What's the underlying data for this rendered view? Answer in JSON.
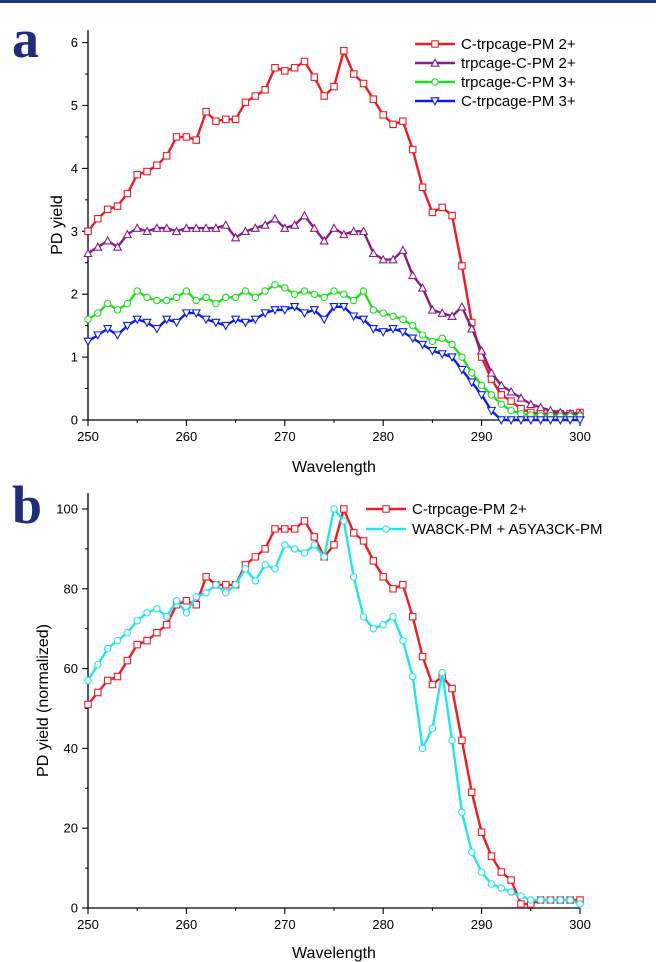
{
  "panels": [
    {
      "letter": "a"
    },
    {
      "letter": "b"
    }
  ],
  "chart_data": [
    {
      "type": "line",
      "xlabel": "Wavelength",
      "ylabel": "PD yield",
      "xlim": [
        250,
        300
      ],
      "ylim": [
        0,
        6.2
      ],
      "xticks": [
        250,
        260,
        270,
        280,
        290,
        300
      ],
      "yticks": [
        0,
        1,
        2,
        3,
        4,
        5,
        6
      ],
      "legend_position": "top-right",
      "series": [
        {
          "name": "C-trpcage-PM 2+",
          "color": "#ee1c24",
          "marker": "square",
          "x": [
            250,
            251,
            252,
            253,
            254,
            255,
            256,
            257,
            258,
            259,
            260,
            261,
            262,
            263,
            264,
            265,
            266,
            267,
            268,
            269,
            270,
            271,
            272,
            273,
            274,
            275,
            276,
            277,
            278,
            279,
            280,
            281,
            282,
            283,
            284,
            285,
            286,
            287,
            288,
            289,
            290,
            291,
            292,
            293,
            294,
            295,
            296,
            297,
            298,
            299,
            300
          ],
          "y": [
            3.0,
            3.2,
            3.35,
            3.4,
            3.6,
            3.9,
            3.95,
            4.05,
            4.2,
            4.5,
            4.5,
            4.45,
            4.9,
            4.75,
            4.78,
            4.78,
            5.05,
            5.15,
            5.25,
            5.6,
            5.55,
            5.6,
            5.7,
            5.45,
            5.15,
            5.3,
            5.87,
            5.5,
            5.35,
            5.1,
            4.85,
            4.7,
            4.75,
            4.3,
            3.7,
            3.3,
            3.38,
            3.25,
            2.45,
            1.55,
            1.0,
            0.65,
            0.4,
            0.3,
            0.18,
            0.12,
            0.1,
            0.1,
            0.1,
            0.1,
            0.12
          ]
        },
        {
          "name": "trpcage-C-PM 2+",
          "color": "#8b1a8b",
          "marker": "triangle-up",
          "x": [
            250,
            251,
            252,
            253,
            254,
            255,
            256,
            257,
            258,
            259,
            260,
            261,
            262,
            263,
            264,
            265,
            266,
            267,
            268,
            269,
            270,
            271,
            272,
            273,
            274,
            275,
            276,
            277,
            278,
            279,
            280,
            281,
            282,
            283,
            284,
            285,
            286,
            287,
            288,
            289,
            290,
            291,
            292,
            293,
            294,
            295,
            296,
            297,
            298,
            299,
            300
          ],
          "y": [
            2.65,
            2.75,
            2.85,
            2.75,
            2.95,
            3.05,
            3.0,
            3.05,
            3.05,
            3.0,
            3.05,
            3.05,
            3.05,
            3.05,
            3.1,
            2.9,
            3.0,
            3.05,
            3.1,
            3.2,
            3.05,
            3.1,
            3.25,
            3.05,
            2.85,
            3.05,
            2.95,
            3.0,
            3.0,
            2.65,
            2.55,
            2.55,
            2.7,
            2.3,
            2.1,
            1.75,
            1.7,
            1.65,
            1.8,
            1.45,
            1.1,
            0.75,
            0.55,
            0.45,
            0.35,
            0.25,
            0.2,
            0.15,
            0.12,
            0.1,
            0.1
          ]
        },
        {
          "name": "trpcage-C-PM 3+",
          "color": "#1fe01f",
          "marker": "circle",
          "x": [
            250,
            251,
            252,
            253,
            254,
            255,
            256,
            257,
            258,
            259,
            260,
            261,
            262,
            263,
            264,
            265,
            266,
            267,
            268,
            269,
            270,
            271,
            272,
            273,
            274,
            275,
            276,
            277,
            278,
            279,
            280,
            281,
            282,
            283,
            284,
            285,
            286,
            287,
            288,
            289,
            290,
            291,
            292,
            293,
            294,
            295,
            296,
            297,
            298,
            299,
            300
          ],
          "y": [
            1.6,
            1.7,
            1.85,
            1.75,
            1.85,
            2.05,
            1.95,
            1.9,
            1.9,
            1.95,
            2.05,
            1.9,
            1.95,
            1.85,
            1.95,
            1.95,
            2.05,
            1.95,
            2.05,
            2.15,
            2.1,
            2.0,
            2.05,
            2.0,
            1.95,
            2.05,
            2.0,
            1.9,
            2.05,
            1.75,
            1.7,
            1.65,
            1.6,
            1.5,
            1.35,
            1.25,
            1.3,
            1.2,
            1.0,
            0.75,
            0.55,
            0.4,
            0.25,
            0.15,
            0.1,
            0.08,
            0.07,
            0.07,
            0.06,
            0.06,
            0.06
          ]
        },
        {
          "name": "C-trpcage-PM 3+",
          "color": "#0a1ee6",
          "marker": "triangle-down",
          "x": [
            250,
            251,
            252,
            253,
            254,
            255,
            256,
            257,
            258,
            259,
            260,
            261,
            262,
            263,
            264,
            265,
            266,
            267,
            268,
            269,
            270,
            271,
            272,
            273,
            274,
            275,
            276,
            277,
            278,
            279,
            280,
            281,
            282,
            283,
            284,
            285,
            286,
            287,
            288,
            289,
            290,
            291,
            292,
            293,
            294,
            295,
            296,
            297,
            298,
            299,
            300
          ],
          "y": [
            1.25,
            1.35,
            1.45,
            1.35,
            1.5,
            1.6,
            1.55,
            1.45,
            1.6,
            1.55,
            1.7,
            1.7,
            1.6,
            1.55,
            1.5,
            1.6,
            1.55,
            1.6,
            1.7,
            1.75,
            1.75,
            1.8,
            1.7,
            1.75,
            1.6,
            1.8,
            1.8,
            1.65,
            1.6,
            1.45,
            1.4,
            1.45,
            1.4,
            1.3,
            1.2,
            1.1,
            1.05,
            1.0,
            0.8,
            0.6,
            0.4,
            0.15,
            0.0,
            0.0,
            0.0,
            0.0,
            0.0,
            0.0,
            0.0,
            0.0,
            0.0
          ]
        }
      ]
    },
    {
      "type": "line",
      "xlabel": "Wavelength",
      "ylabel": "PD yield (normalized)",
      "xlim": [
        250,
        300
      ],
      "ylim": [
        0,
        104
      ],
      "xticks": [
        250,
        260,
        270,
        280,
        290,
        300
      ],
      "yticks": [
        0,
        20,
        40,
        60,
        80,
        100
      ],
      "legend_position": "top-right",
      "series": [
        {
          "name": "C-trpcage-PM 2+",
          "color": "#ee1c24",
          "marker": "square",
          "x": [
            250,
            251,
            252,
            253,
            254,
            255,
            256,
            257,
            258,
            259,
            260,
            261,
            262,
            263,
            264,
            265,
            266,
            267,
            268,
            269,
            270,
            271,
            272,
            273,
            274,
            275,
            276,
            277,
            278,
            279,
            280,
            281,
            282,
            283,
            284,
            285,
            286,
            287,
            288,
            289,
            290,
            291,
            292,
            293,
            294,
            295,
            296,
            297,
            298,
            299,
            300
          ],
          "y": [
            51,
            54,
            57,
            58,
            62,
            66,
            67,
            69,
            71,
            76,
            77,
            76,
            83,
            81,
            81,
            81,
            86,
            88,
            90,
            95,
            95,
            95,
            97,
            93,
            88,
            91,
            100,
            94,
            92,
            87,
            83,
            80,
            81,
            73,
            63,
            56,
            58,
            55,
            42,
            29,
            19,
            13,
            9,
            7,
            1,
            1,
            2,
            2,
            2,
            2,
            2
          ]
        },
        {
          "name": "WA8CK-PM + A5YA3CK-PM",
          "color": "#22e5f0",
          "marker": "circle",
          "x": [
            250,
            251,
            252,
            253,
            254,
            255,
            256,
            257,
            258,
            259,
            260,
            261,
            262,
            263,
            264,
            265,
            266,
            267,
            268,
            269,
            270,
            271,
            272,
            273,
            274,
            275,
            276,
            277,
            278,
            279,
            280,
            281,
            282,
            283,
            284,
            285,
            286,
            287,
            288,
            289,
            290,
            291,
            292,
            293,
            294,
            295,
            296,
            297,
            298,
            299,
            300
          ],
          "y": [
            57,
            61,
            65,
            67,
            69,
            72,
            74,
            75,
            73,
            77,
            74,
            78,
            79,
            81,
            79,
            81,
            85,
            82,
            86,
            85,
            91,
            90,
            89,
            91,
            88,
            100,
            97,
            83,
            73,
            70,
            71,
            73,
            67,
            58,
            40,
            45,
            59,
            42,
            24,
            14,
            9,
            6,
            5,
            4,
            3,
            2,
            2,
            2,
            2,
            2,
            1
          ]
        }
      ]
    }
  ]
}
